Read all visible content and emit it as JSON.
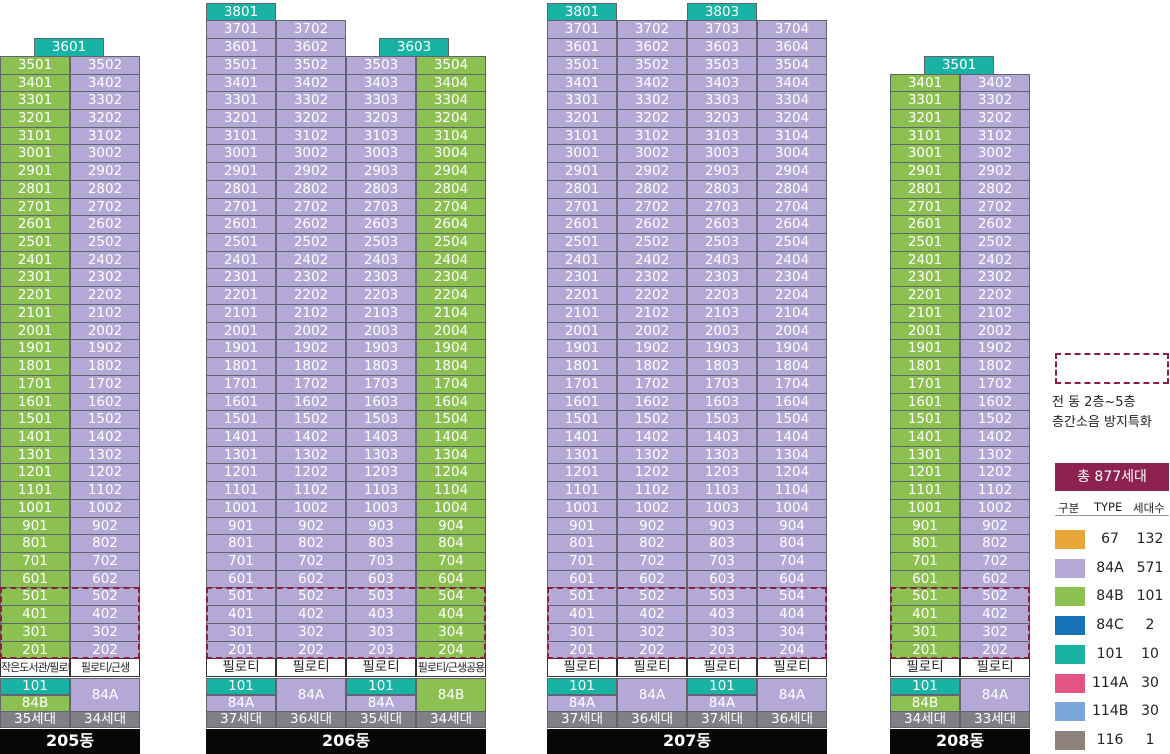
{
  "colors": {
    "t84A": "#b3a8d6",
    "t84B": "#8cc152",
    "t101": "#19b3a6",
    "white": "#ffffff",
    "count": "#7f7f84",
    "highlight": "#8b1e3f"
  },
  "buildings": [
    {
      "name": "205동",
      "columns": [
        {
          "line": "01",
          "type": "84B",
          "top_floor": 35,
          "roof_unit": "3601",
          "label": "작은도서관/필로티",
          "types": [
            {
              "label": "101",
              "type": "101"
            },
            {
              "label": "84B",
              "type": "84B"
            }
          ],
          "count": "35세대"
        },
        {
          "line": "02",
          "type": "84A",
          "top_floor": 35,
          "label": "필로티/근생",
          "types": [
            {
              "label": "84A",
              "type": "84A"
            }
          ],
          "count": "34세대"
        }
      ]
    },
    {
      "name": "206동",
      "columns": [
        {
          "line": "01",
          "type": "84A",
          "top_floor": 37,
          "roof_unit": "3801",
          "label": "필로티",
          "types": [
            {
              "label": "101",
              "type": "101"
            },
            {
              "label": "84A",
              "type": "84A"
            }
          ],
          "count": "37세대"
        },
        {
          "line": "02",
          "type": "84A",
          "top_floor": 37,
          "label": "필로티",
          "types": [
            {
              "label": "84A",
              "type": "84A"
            }
          ],
          "count": "36세대"
        },
        {
          "line": "03",
          "type": "84A",
          "top_floor": 35,
          "roof_unit": "3603",
          "label": "필로티",
          "types": [
            {
              "label": "101",
              "type": "101"
            },
            {
              "label": "84A",
              "type": "84A"
            }
          ],
          "count": "35세대"
        },
        {
          "line": "04",
          "type": "84B",
          "top_floor": 35,
          "label": "필로티/근생공용",
          "types": [
            {
              "label": "84B",
              "type": "84B"
            }
          ],
          "count": "34세대"
        }
      ]
    },
    {
      "name": "207동",
      "columns": [
        {
          "line": "01",
          "type": "84A",
          "top_floor": 37,
          "roof_unit": "3801",
          "label": "필로티",
          "types": [
            {
              "label": "101",
              "type": "101"
            },
            {
              "label": "84A",
              "type": "84A"
            }
          ],
          "count": "37세대"
        },
        {
          "line": "02",
          "type": "84A",
          "top_floor": 37,
          "label": "필로티",
          "types": [
            {
              "label": "84A",
              "type": "84A"
            }
          ],
          "count": "36세대"
        },
        {
          "line": "03",
          "type": "84A",
          "top_floor": 37,
          "roof_unit": "3803",
          "label": "필로티",
          "types": [
            {
              "label": "101",
              "type": "101"
            },
            {
              "label": "84A",
              "type": "84A"
            }
          ],
          "count": "37세대"
        },
        {
          "line": "04",
          "type": "84A",
          "top_floor": 37,
          "label": "필로티",
          "types": [
            {
              "label": "84A",
              "type": "84A"
            }
          ],
          "count": "36세대"
        }
      ]
    },
    {
      "name": "208동",
      "columns": [
        {
          "line": "01",
          "type": "84B",
          "top_floor": 34,
          "roof_unit": "3501",
          "label": "필로티",
          "types": [
            {
              "label": "101",
              "type": "101"
            },
            {
              "label": "84B",
              "type": "84B"
            }
          ],
          "count": "34세대"
        },
        {
          "line": "02",
          "type": "84A",
          "top_floor": 34,
          "label": "필로티",
          "types": [
            {
              "label": "84A",
              "type": "84A"
            }
          ],
          "count": "33세대"
        }
      ]
    }
  ],
  "note": {
    "line1": "전 동 2층~5층",
    "line2": "층간소음 방지특화"
  },
  "legend": {
    "title": "총 877세대",
    "headers": [
      "구분",
      "TYPE",
      "세대수"
    ],
    "rows": [
      {
        "color": "#e8a73a",
        "type": "67",
        "count": "132"
      },
      {
        "color": "#b3a8d6",
        "type": "84A",
        "count": "571"
      },
      {
        "color": "#8cc152",
        "type": "84B",
        "count": "101"
      },
      {
        "color": "#1672b9",
        "type": "84C",
        "count": "2"
      },
      {
        "color": "#19b3a6",
        "type": "101",
        "count": "10"
      },
      {
        "color": "#e35383",
        "type": "114A",
        "count": "30"
      },
      {
        "color": "#7ba6dc",
        "type": "114B",
        "count": "30"
      },
      {
        "color": "#8f827a",
        "type": "116",
        "count": "1"
      }
    ]
  }
}
